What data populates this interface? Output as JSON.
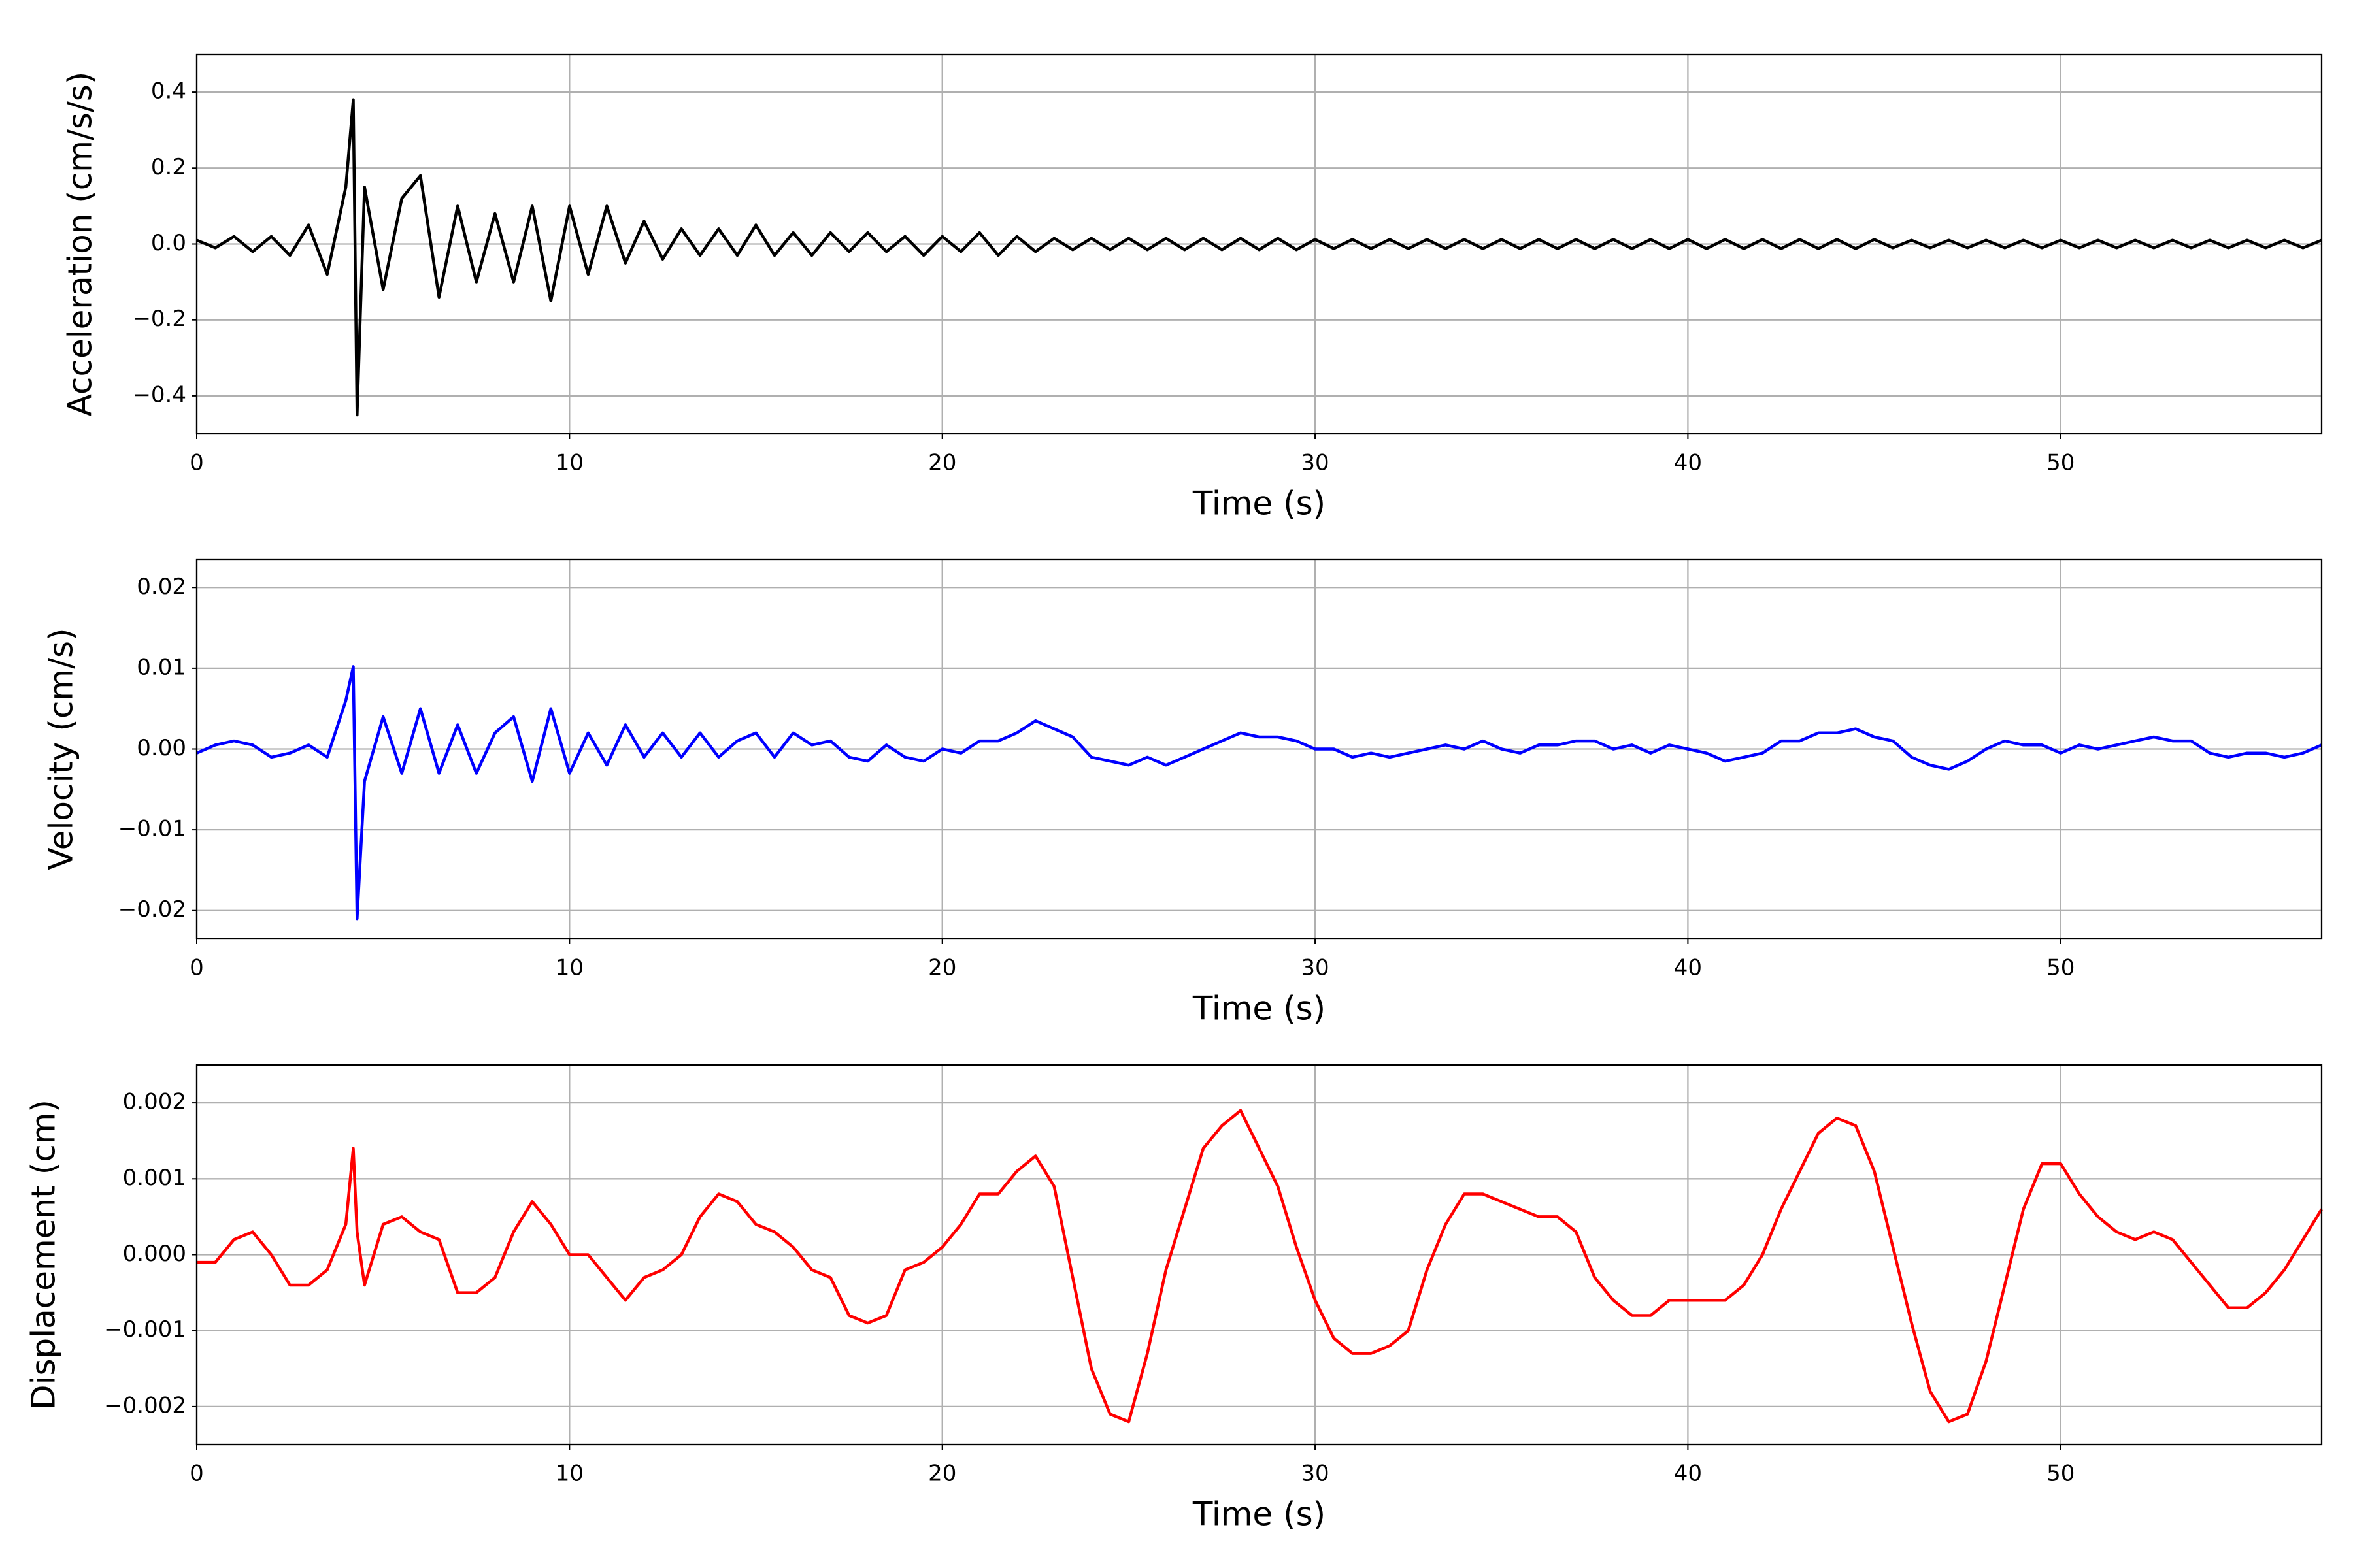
{
  "chart_data": [
    {
      "type": "line",
      "xlabel": "Time (s)",
      "ylabel": "Acceleration (cm/s/s)",
      "color": "#000000",
      "grid": true,
      "x": [
        0,
        0.5,
        1,
        1.5,
        2,
        2.5,
        3,
        3.5,
        4,
        4.2,
        4.3,
        4.5,
        5,
        5.5,
        6,
        6.5,
        7,
        7.5,
        8,
        8.5,
        9,
        9.5,
        10,
        10.5,
        11,
        11.5,
        12,
        12.5,
        13,
        13.5,
        14,
        14.5,
        15,
        15.5,
        16,
        16.5,
        17,
        17.5,
        18,
        18.5,
        19,
        19.5,
        20,
        20.5,
        21,
        21.5,
        22,
        22.5,
        23,
        23.5,
        24,
        24.5,
        25,
        25.5,
        26,
        26.5,
        27,
        27.5,
        28,
        28.5,
        29,
        29.5,
        30,
        30.5,
        31,
        31.5,
        32,
        32.5,
        33,
        33.5,
        34,
        34.5,
        35,
        35.5,
        36,
        36.5,
        37,
        37.5,
        38,
        38.5,
        39,
        39.5,
        40,
        40.5,
        41,
        41.5,
        42,
        42.5,
        43,
        43.5,
        44,
        44.5,
        45,
        45.5,
        46,
        46.5,
        47,
        47.5,
        48,
        48.5,
        49,
        49.5,
        50,
        50.5,
        51,
        51.5,
        52,
        52.5,
        53,
        53.5,
        54,
        54.5,
        55,
        55.5,
        56,
        56.5,
        57
      ],
      "values": [
        0.01,
        -0.01,
        0.02,
        -0.02,
        0.02,
        -0.03,
        0.05,
        -0.08,
        0.15,
        0.38,
        -0.45,
        0.15,
        -0.12,
        0.12,
        0.18,
        -0.14,
        0.1,
        -0.1,
        0.08,
        -0.1,
        0.1,
        -0.15,
        0.1,
        -0.08,
        0.1,
        -0.05,
        0.06,
        -0.04,
        0.04,
        -0.03,
        0.04,
        -0.03,
        0.05,
        -0.03,
        0.03,
        -0.03,
        0.03,
        -0.02,
        0.03,
        -0.02,
        0.02,
        -0.03,
        0.02,
        -0.02,
        0.03,
        -0.03,
        0.02,
        -0.02,
        0.015,
        -0.015,
        0.015,
        -0.015,
        0.015,
        -0.015,
        0.015,
        -0.015,
        0.015,
        -0.015,
        0.015,
        -0.015,
        0.015,
        -0.015,
        0.012,
        -0.012,
        0.012,
        -0.012,
        0.012,
        -0.012,
        0.012,
        -0.012,
        0.012,
        -0.012,
        0.012,
        -0.012,
        0.012,
        -0.012,
        0.012,
        -0.012,
        0.012,
        -0.012,
        0.012,
        -0.012,
        0.012,
        -0.012,
        0.012,
        -0.012,
        0.012,
        -0.012,
        0.012,
        -0.012,
        0.012,
        -0.012,
        0.012,
        -0.01,
        0.01,
        -0.01,
        0.01,
        -0.01,
        0.01,
        -0.01,
        0.01,
        -0.01,
        0.01,
        -0.01,
        0.01,
        -0.01,
        0.01,
        -0.01,
        0.01,
        -0.01,
        0.01,
        -0.01,
        0.01,
        -0.01,
        0.01,
        -0.01,
        0.01
      ],
      "xlim": [
        0,
        57
      ],
      "xticks": [
        0,
        10,
        20,
        30,
        40,
        50
      ],
      "ylim": [
        -0.5,
        0.5
      ],
      "yticks": [
        {
          "value": -0.4,
          "label": "−0.4"
        },
        {
          "value": -0.2,
          "label": "−0.2"
        },
        {
          "value": 0,
          "label": "0.0"
        },
        0.2,
        0.4
      ]
    },
    {
      "type": "line",
      "xlabel": "Time (s)",
      "ylabel": "Velocity (cm/s)",
      "color": "#0000ff",
      "grid": true,
      "x": [
        0,
        0.5,
        1,
        1.5,
        2,
        2.5,
        3,
        3.5,
        4,
        4.2,
        4.3,
        4.5,
        5,
        5.5,
        6,
        6.5,
        7,
        7.5,
        8,
        8.5,
        9,
        9.5,
        10,
        10.5,
        11,
        11.5,
        12,
        12.5,
        13,
        13.5,
        14,
        14.5,
        15,
        15.5,
        16,
        16.5,
        17,
        17.5,
        18,
        18.5,
        19,
        19.5,
        20,
        20.5,
        21,
        21.5,
        22,
        22.5,
        23,
        23.5,
        24,
        24.5,
        25,
        25.5,
        26,
        26.5,
        27,
        27.5,
        28,
        28.5,
        29,
        29.5,
        30,
        30.5,
        31,
        31.5,
        32,
        32.5,
        33,
        33.5,
        34,
        34.5,
        35,
        35.5,
        36,
        36.5,
        37,
        37.5,
        38,
        38.5,
        39,
        39.5,
        40,
        40.5,
        41,
        41.5,
        42,
        42.5,
        43,
        43.5,
        44,
        44.5,
        45,
        45.5,
        46,
        46.5,
        47,
        47.5,
        48,
        48.5,
        49,
        49.5,
        50,
        50.5,
        51,
        51.5,
        52,
        52.5,
        53,
        53.5,
        54,
        54.5,
        55,
        55.5,
        56,
        56.5,
        57
      ],
      "values": [
        -0.0005,
        0.0005,
        0.001,
        0.0005,
        -0.001,
        -0.0005,
        0.0005,
        -0.001,
        0.006,
        0.0102,
        -0.021,
        -0.004,
        0.004,
        -0.003,
        0.005,
        -0.003,
        0.003,
        -0.003,
        0.002,
        0.004,
        -0.004,
        0.005,
        -0.003,
        0.002,
        -0.002,
        0.003,
        -0.001,
        0.002,
        -0.001,
        0.002,
        -0.001,
        0.001,
        0.002,
        -0.001,
        0.002,
        0.0005,
        0.001,
        -0.001,
        -0.0015,
        0.0005,
        -0.001,
        -0.0015,
        0,
        -0.0005,
        0.001,
        0.001,
        0.002,
        0.0035,
        0.0025,
        0.0015,
        -0.001,
        -0.0015,
        -0.002,
        -0.001,
        -0.002,
        -0.001,
        0,
        0.001,
        0.002,
        0.0015,
        0.0015,
        0.001,
        0,
        0,
        -0.001,
        -0.0005,
        -0.001,
        -0.0005,
        0,
        0.0005,
        0,
        0.001,
        0,
        -0.0005,
        0.0005,
        0.0005,
        0.001,
        0.001,
        0,
        0.0005,
        -0.0005,
        0.0005,
        0,
        -0.0005,
        -0.0015,
        -0.001,
        -0.0005,
        0.001,
        0.001,
        0.002,
        0.002,
        0.0025,
        0.0015,
        0.001,
        -0.001,
        -0.002,
        -0.0025,
        -0.0015,
        0,
        0.001,
        0.0005,
        0.0005,
        -0.0005,
        0.0005,
        0,
        0.0005,
        0.001,
        0.0015,
        0.001,
        0.001,
        -0.0005,
        -0.001,
        -0.0005,
        -0.0005,
        -0.001,
        -0.0005,
        0.0005
      ],
      "xlim": [
        0,
        57
      ],
      "xticks": [
        0,
        10,
        20,
        30,
        40,
        50
      ],
      "ylim": [
        -0.0235,
        0.0235
      ],
      "yticks": [
        {
          "value": -0.02,
          "label": "−0.02"
        },
        {
          "value": -0.01,
          "label": "−0.01"
        },
        {
          "value": 0,
          "label": "0.00"
        },
        0.01,
        0.02
      ]
    },
    {
      "type": "line",
      "xlabel": "Time (s)",
      "ylabel": "Displacement (cm)",
      "color": "#ff0000",
      "grid": true,
      "x": [
        0,
        0.5,
        1,
        1.5,
        2,
        2.5,
        3,
        3.5,
        4,
        4.2,
        4.3,
        4.5,
        5,
        5.5,
        6,
        6.5,
        7,
        7.5,
        8,
        8.5,
        9,
        9.5,
        10,
        10.5,
        11,
        11.5,
        12,
        12.5,
        13,
        13.5,
        14,
        14.5,
        15,
        15.5,
        16,
        16.5,
        17,
        17.5,
        18,
        18.5,
        19,
        19.5,
        20,
        20.5,
        21,
        21.5,
        22,
        22.5,
        23,
        23.5,
        24,
        24.5,
        25,
        25.5,
        26,
        26.5,
        27,
        27.5,
        28,
        28.5,
        29,
        29.5,
        30,
        30.5,
        31,
        31.5,
        32,
        32.5,
        33,
        33.5,
        34,
        34.5,
        35,
        35.5,
        36,
        36.5,
        37,
        37.5,
        38,
        38.5,
        39,
        39.5,
        40,
        40.5,
        41,
        41.5,
        42,
        42.5,
        43,
        43.5,
        44,
        44.5,
        45,
        45.5,
        46,
        46.5,
        47,
        47.5,
        48,
        48.5,
        49,
        49.5,
        50,
        50.5,
        51,
        51.5,
        52,
        52.5,
        53,
        53.5,
        54,
        54.5,
        55,
        55.5,
        56,
        56.5,
        57
      ],
      "values": [
        -0.0001,
        -0.0001,
        0.0002,
        0.0003,
        0,
        -0.0004,
        -0.0004,
        -0.0002,
        0.0004,
        0.0014,
        0.0003,
        -0.0004,
        0.0004,
        0.0005,
        0.0003,
        0.0002,
        -0.0005,
        -0.0005,
        -0.0003,
        0.0003,
        0.0007,
        0.0004,
        0,
        0,
        -0.0003,
        -0.0006,
        -0.0003,
        -0.0002,
        0,
        0.0005,
        0.0008,
        0.0007,
        0.0004,
        0.0003,
        0.0001,
        -0.0002,
        -0.0003,
        -0.0008,
        -0.0009,
        -0.0008,
        -0.0002,
        -0.0001,
        0.0001,
        0.0004,
        0.0008,
        0.0008,
        0.0011,
        0.0013,
        0.0009,
        -0.0003,
        -0.0015,
        -0.0021,
        -0.0022,
        -0.0013,
        -0.0002,
        0.0006,
        0.0014,
        0.0017,
        0.0019,
        0.0014,
        0.0009,
        0.0001,
        -0.0006,
        -0.0011,
        -0.0013,
        -0.0013,
        -0.0012,
        -0.001,
        -0.0002,
        0.0004,
        0.0008,
        0.0008,
        0.0007,
        0.0006,
        0.0005,
        0.0005,
        0.0003,
        -0.0003,
        -0.0006,
        -0.0008,
        -0.0008,
        -0.0006,
        -0.0006,
        -0.0006,
        -0.0006,
        -0.0004,
        0,
        0.0006,
        0.0011,
        0.0016,
        0.0018,
        0.0017,
        0.0011,
        0.0001,
        -0.0009,
        -0.0018,
        -0.0022,
        -0.0021,
        -0.0014,
        -0.0004,
        0.0006,
        0.0012,
        0.0012,
        0.0008,
        0.0005,
        0.0003,
        0.0002,
        0.0003,
        0.0002,
        -0.0001,
        -0.0004,
        -0.0007,
        -0.0007,
        -0.0005,
        -0.0002,
        0.0002,
        0.0006
      ],
      "xlim": [
        0,
        57
      ],
      "xticks": [
        0,
        10,
        20,
        30,
        40,
        50
      ],
      "ylim": [
        -0.0025,
        0.0025
      ],
      "yticks": [
        {
          "value": -0.002,
          "label": "−0.002"
        },
        {
          "value": -0.001,
          "label": "−0.001"
        },
        {
          "value": 0,
          "label": "0.000"
        },
        0.001,
        0.002
      ]
    }
  ]
}
